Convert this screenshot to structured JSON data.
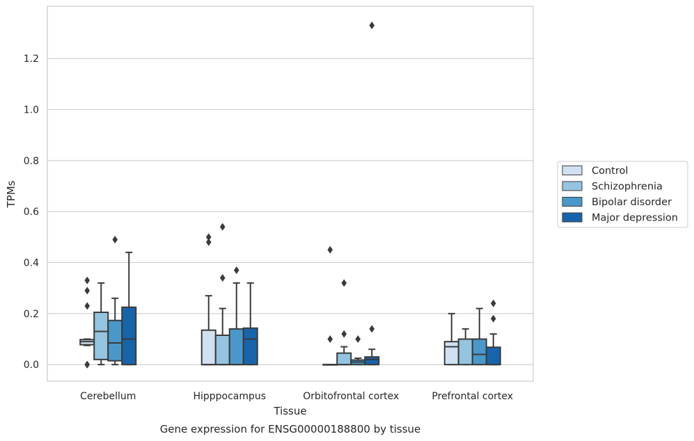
{
  "chart_data": {
    "type": "box",
    "xlabel": "Tissue",
    "ylabel": "TPMs",
    "caption": "Gene expression for ENSG00000188800 by tissue",
    "ylim": [
      -0.065,
      1.405
    ],
    "yticks": [
      0.0,
      0.2,
      0.4,
      0.6,
      0.8,
      1.0,
      1.2
    ],
    "ytick_labels": [
      "0.0",
      "0.2",
      "0.4",
      "0.6",
      "0.8",
      "1.0",
      "1.2"
    ],
    "grid": "horizontal",
    "legend_position": "right",
    "categories": [
      "Cerebellum",
      "Hipppocampus",
      "Orbitofrontal cortex",
      "Prefrontal cortex"
    ],
    "series": [
      {
        "name": "Control",
        "color": "#d0e1f2",
        "boxes": [
          {
            "whislo": 0.075,
            "q1": 0.078,
            "med": 0.09,
            "q3": 0.098,
            "whishi": 0.1,
            "fliers": [
              0.33,
              0.29,
              0.23,
              0.0,
              0.0
            ]
          },
          {
            "whislo": 0.0,
            "q1": 0.0,
            "med": 0.0,
            "q3": 0.135,
            "whishi": 0.27,
            "fliers": [
              0.5,
              0.48
            ]
          },
          {
            "whislo": 0.0,
            "q1": 0.0,
            "med": 0.0,
            "q3": 0.0,
            "whishi": 0.0,
            "fliers": [
              0.45,
              0.1
            ]
          },
          {
            "whislo": 0.0,
            "q1": 0.0,
            "med": 0.07,
            "q3": 0.09,
            "whishi": 0.2,
            "fliers": []
          }
        ]
      },
      {
        "name": "Schizophrenia",
        "color": "#94c4df",
        "boxes": [
          {
            "whislo": 0.0,
            "q1": 0.02,
            "med": 0.13,
            "q3": 0.205,
            "whishi": 0.32,
            "fliers": []
          },
          {
            "whislo": 0.0,
            "q1": 0.0,
            "med": 0.0,
            "q3": 0.115,
            "whishi": 0.22,
            "fliers": [
              0.54,
              0.34
            ]
          },
          {
            "whislo": 0.0,
            "q1": 0.0,
            "med": 0.0,
            "q3": 0.045,
            "whishi": 0.07,
            "fliers": [
              0.32,
              0.12
            ]
          },
          {
            "whislo": 0.0,
            "q1": 0.0,
            "med": 0.1,
            "q3": 0.1,
            "whishi": 0.14,
            "fliers": []
          }
        ]
      },
      {
        "name": "Bipolar disorder",
        "color": "#4a98c9",
        "boxes": [
          {
            "whislo": 0.0,
            "q1": 0.015,
            "med": 0.085,
            "q3": 0.173,
            "whishi": 0.26,
            "fliers": [
              0.49
            ]
          },
          {
            "whislo": 0.0,
            "q1": 0.0,
            "med": 0.0,
            "q3": 0.14,
            "whishi": 0.32,
            "fliers": [
              0.37
            ]
          },
          {
            "whislo": 0.0,
            "q1": 0.0,
            "med": 0.01,
            "q3": 0.018,
            "whishi": 0.025,
            "fliers": [
              0.1
            ]
          },
          {
            "whislo": 0.0,
            "q1": 0.0,
            "med": 0.04,
            "q3": 0.1,
            "whishi": 0.22,
            "fliers": []
          }
        ]
      },
      {
        "name": "Major depression",
        "color": "#1764ab",
        "boxes": [
          {
            "whislo": 0.0,
            "q1": 0.0,
            "med": 0.1,
            "q3": 0.225,
            "whishi": 0.44,
            "fliers": []
          },
          {
            "whislo": 0.0,
            "q1": 0.0,
            "med": 0.1,
            "q3": 0.143,
            "whishi": 0.32,
            "fliers": []
          },
          {
            "whislo": 0.0,
            "q1": 0.0,
            "med": 0.02,
            "q3": 0.03,
            "whishi": 0.06,
            "fliers": [
              1.33,
              0.14
            ]
          },
          {
            "whislo": 0.0,
            "q1": 0.0,
            "med": 0.0,
            "q3": 0.068,
            "whishi": 0.12,
            "fliers": [
              0.24,
              0.18
            ]
          }
        ]
      }
    ]
  }
}
